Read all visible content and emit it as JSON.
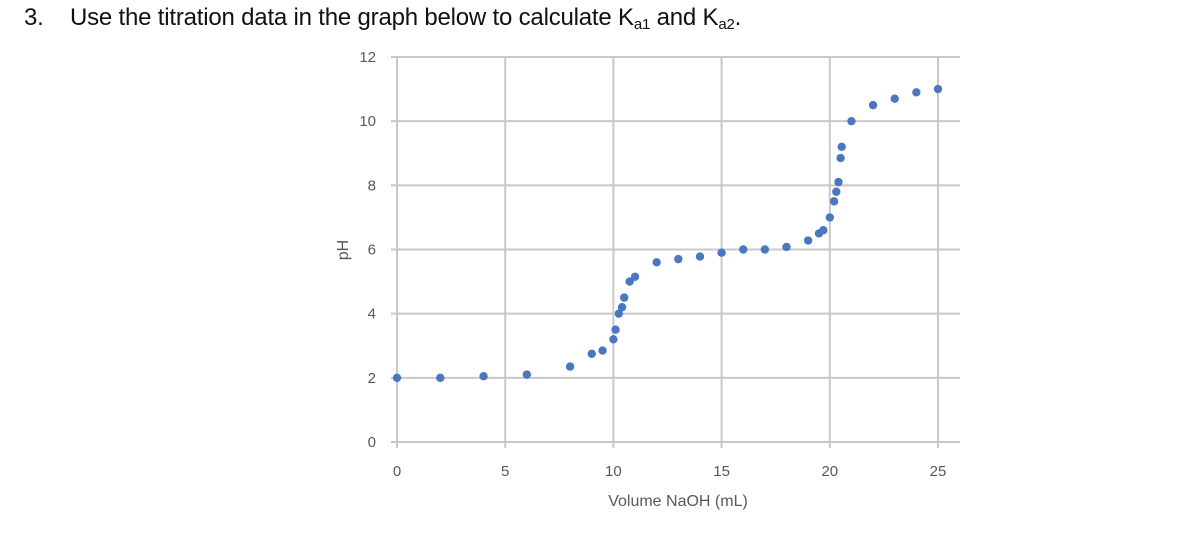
{
  "question": {
    "number": "3.",
    "text_before": "Use the titration data in the graph below to calculate K",
    "sub1": "a1",
    "text_mid": " and K",
    "sub2": "a2",
    "text_after": "."
  },
  "chart_data": {
    "type": "scatter",
    "title": "",
    "xlabel": "Volume NaOH (mL)",
    "ylabel": "pH",
    "xlim": [
      0,
      25
    ],
    "ylim": [
      0,
      12
    ],
    "xticks": [
      0,
      5,
      10,
      15,
      20,
      25
    ],
    "yticks": [
      0,
      2,
      4,
      6,
      8,
      10,
      12
    ],
    "grid": true,
    "legend": null,
    "marker_color": "#4a78c0",
    "grid_color": "#c8c8c8",
    "series": [
      {
        "name": "pH",
        "x": [
          0,
          2,
          4,
          6,
          8,
          9,
          9.5,
          10,
          10.1,
          10.25,
          10.4,
          10.5,
          10.75,
          11,
          12,
          13,
          14,
          15,
          16,
          17,
          18,
          19,
          19.5,
          19.7,
          20,
          20.2,
          20.3,
          20.4,
          20.5,
          20.55,
          21,
          22,
          23,
          24,
          25
        ],
        "y": [
          2.0,
          2.0,
          2.05,
          2.1,
          2.35,
          2.75,
          2.85,
          3.2,
          3.5,
          4.0,
          4.2,
          4.5,
          5.0,
          5.15,
          5.6,
          5.7,
          5.78,
          5.9,
          6.0,
          6.0,
          6.08,
          6.28,
          6.5,
          6.6,
          7.0,
          7.5,
          7.8,
          8.1,
          8.85,
          9.2,
          10.0,
          10.5,
          10.7,
          10.9,
          11.0
        ]
      }
    ]
  }
}
